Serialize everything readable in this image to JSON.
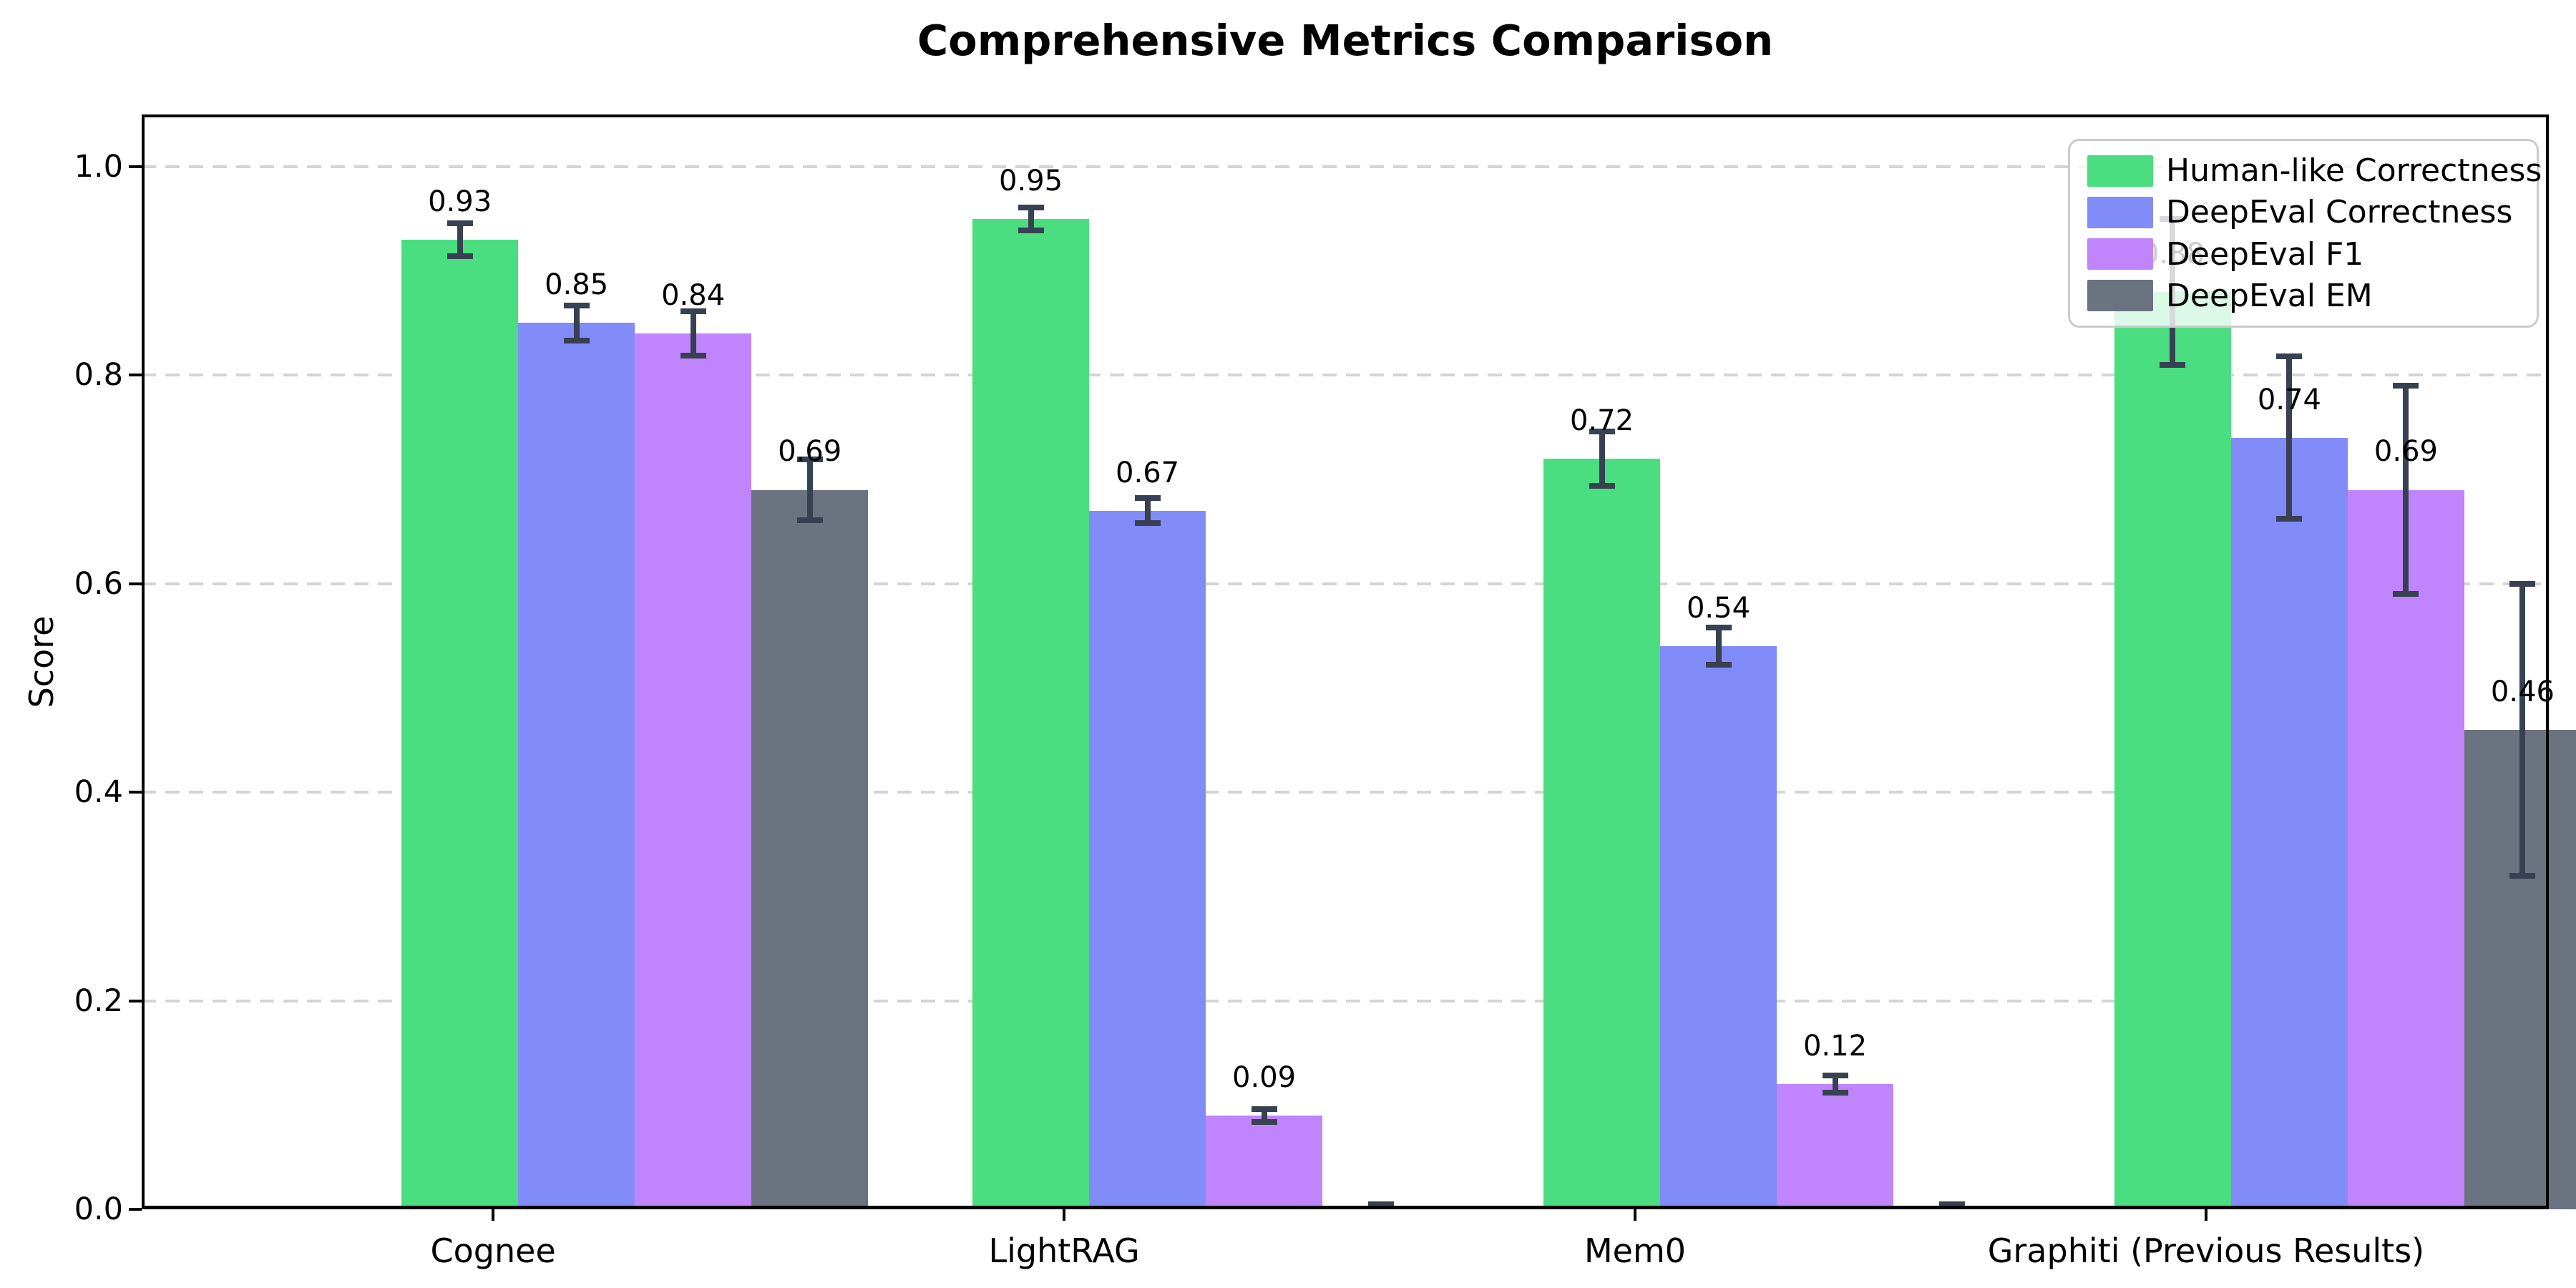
{
  "chart_data": {
    "type": "bar",
    "title": "Comprehensive Metrics Comparison",
    "ylabel": "Score",
    "xlabel": "",
    "categories": [
      "Cognee",
      "LightRAG",
      "Mem0",
      "Graphiti (Previous Results)"
    ],
    "series": [
      {
        "name": "Human-like Correctness",
        "color": "#4ade80",
        "values": [
          0.93,
          0.95,
          0.72,
          0.88
        ],
        "errors": [
          0.016,
          0.011,
          0.026,
          0.07
        ],
        "value_labels": [
          "0.93",
          "0.95",
          "0.72",
          "0.88"
        ]
      },
      {
        "name": "DeepEval Correctness",
        "color": "#818cf8",
        "values": [
          0.85,
          0.67,
          0.54,
          0.74
        ],
        "errors": [
          0.017,
          0.012,
          0.018,
          0.078
        ],
        "value_labels": [
          "0.85",
          "0.67",
          "0.54",
          "0.74"
        ]
      },
      {
        "name": "DeepEval F1",
        "color": "#c084fc",
        "values": [
          0.84,
          0.09,
          0.12,
          0.69
        ],
        "errors": [
          0.021,
          0.006,
          0.008,
          0.1
        ],
        "value_labels": [
          "0.84",
          "0.09",
          "0.12",
          "0.69"
        ]
      },
      {
        "name": "DeepEval EM",
        "color": "#6b7280",
        "values": [
          0.69,
          0.0,
          0.0,
          0.46
        ],
        "errors": [
          0.029,
          0.005,
          0.005,
          0.14
        ],
        "value_labels": [
          "0.69",
          "",
          "",
          "0.46"
        ]
      }
    ],
    "yticks": [
      0.0,
      0.2,
      0.4,
      0.6,
      0.8,
      1.0
    ],
    "ytick_labels": [
      "0.0",
      "0.2",
      "0.4",
      "0.6",
      "0.8",
      "1.0"
    ],
    "ylim": [
      0,
      1.05
    ],
    "grid": "horizontal dashed",
    "legend_position": "upper right",
    "error_bar_color": "#374151",
    "grid_color": "#d4d4d4",
    "background": "#ffffff"
  }
}
